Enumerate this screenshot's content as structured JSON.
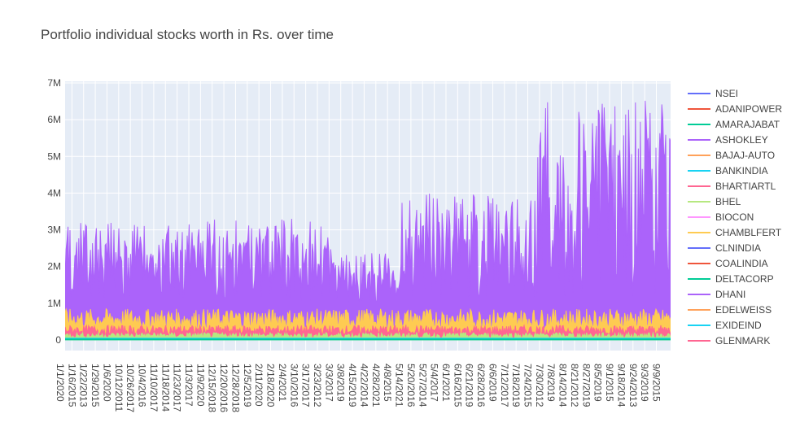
{
  "chart_data": {
    "type": "line",
    "title": "Portfolio individual stocks worth in Rs. over time",
    "xlabel": "",
    "ylabel": "",
    "ylim": [
      0,
      7000000
    ],
    "y_ticks": [
      {
        "value": 0,
        "label": "0"
      },
      {
        "value": 1000000,
        "label": "1M"
      },
      {
        "value": 2000000,
        "label": "2M"
      },
      {
        "value": 3000000,
        "label": "3M"
      },
      {
        "value": 4000000,
        "label": "4M"
      },
      {
        "value": 5000000,
        "label": "5M"
      },
      {
        "value": 6000000,
        "label": "6M"
      },
      {
        "value": 7000000,
        "label": "7M"
      }
    ],
    "x_tick_labels": [
      "1/1/2020",
      "1/16/2015",
      "1/22/2013",
      "1/29/2015",
      "1/6/2020",
      "10/12/2011",
      "10/26/2017",
      "10/4/2016",
      "11/10/2017",
      "11/18/2014",
      "11/23/2017",
      "11/3/2017",
      "11/9/2020",
      "12/15/2018",
      "12/20/2016",
      "12/28/2018",
      "12/5/2019",
      "2/11/2020",
      "2/18/2020",
      "2/4/2021",
      "3/10/2016",
      "3/17/2017",
      "3/23/2012",
      "3/3/2017",
      "3/8/2019",
      "4/15/2019",
      "4/22/2014",
      "4/28/2021",
      "4/8/2015",
      "5/14/2021",
      "5/20/2016",
      "5/27/2014",
      "5/4/2017",
      "6/1/2021",
      "6/16/2015",
      "6/21/2019",
      "6/28/2016",
      "6/6/2019",
      "7/12/2017",
      "7/18/2019",
      "7/24/2015",
      "7/30/2012",
      "7/8/2019",
      "8/14/2014",
      "8/21/2012",
      "8/27/2019",
      "8/5/2019",
      "9/1/2015",
      "9/18/2014",
      "9/24/2013",
      "9/3/2019",
      "9/9/2015"
    ],
    "legend_position": "right",
    "grid": true,
    "series": [
      {
        "name": "NSEI",
        "color": "#636efa"
      },
      {
        "name": "ADANIPOWER",
        "color": "#EF553B"
      },
      {
        "name": "AMARAJABAT",
        "color": "#00cc96"
      },
      {
        "name": "ASHOKLEY",
        "color": "#ab63fa"
      },
      {
        "name": "BAJAJ-AUTO",
        "color": "#FFA15A"
      },
      {
        "name": "BANKINDIA",
        "color": "#19d3f3"
      },
      {
        "name": "BHARTIARTL",
        "color": "#FF6692"
      },
      {
        "name": "BHEL",
        "color": "#B6E880"
      },
      {
        "name": "BIOCON",
        "color": "#FF97FF"
      },
      {
        "name": "CHAMBLFERT",
        "color": "#FECB52"
      },
      {
        "name": "CLNINDIA",
        "color": "#636efa"
      },
      {
        "name": "COALINDIA",
        "color": "#EF553B"
      },
      {
        "name": "DELTACORP",
        "color": "#00cc96"
      },
      {
        "name": "DHANI",
        "color": "#ab63fa"
      },
      {
        "name": "EDELWEISS",
        "color": "#FFA15A"
      },
      {
        "name": "EXIDEIND",
        "color": "#19d3f3"
      },
      {
        "name": "GLENMARK",
        "color": "#FF6692"
      }
    ],
    "band_profile": {
      "segments": [
        {
          "x_from": 0,
          "x_to": 0.22,
          "base": 1100000,
          "peak": 3200000
        },
        {
          "x_from": 0.22,
          "x_to": 0.44,
          "base": 1050000,
          "peak": 3300000
        },
        {
          "x_from": 0.44,
          "x_to": 0.55,
          "base": 1000000,
          "peak": 2400000
        },
        {
          "x_from": 0.55,
          "x_to": 0.78,
          "base": 1150000,
          "peak": 4000000
        },
        {
          "x_from": 0.78,
          "x_to": 1.0,
          "base": 1200000,
          "peak": 6600000
        }
      ],
      "yellow_band": [
        300000,
        850000
      ],
      "red_band": [
        150000,
        400000
      ],
      "green_band": [
        50000,
        200000
      ]
    }
  }
}
